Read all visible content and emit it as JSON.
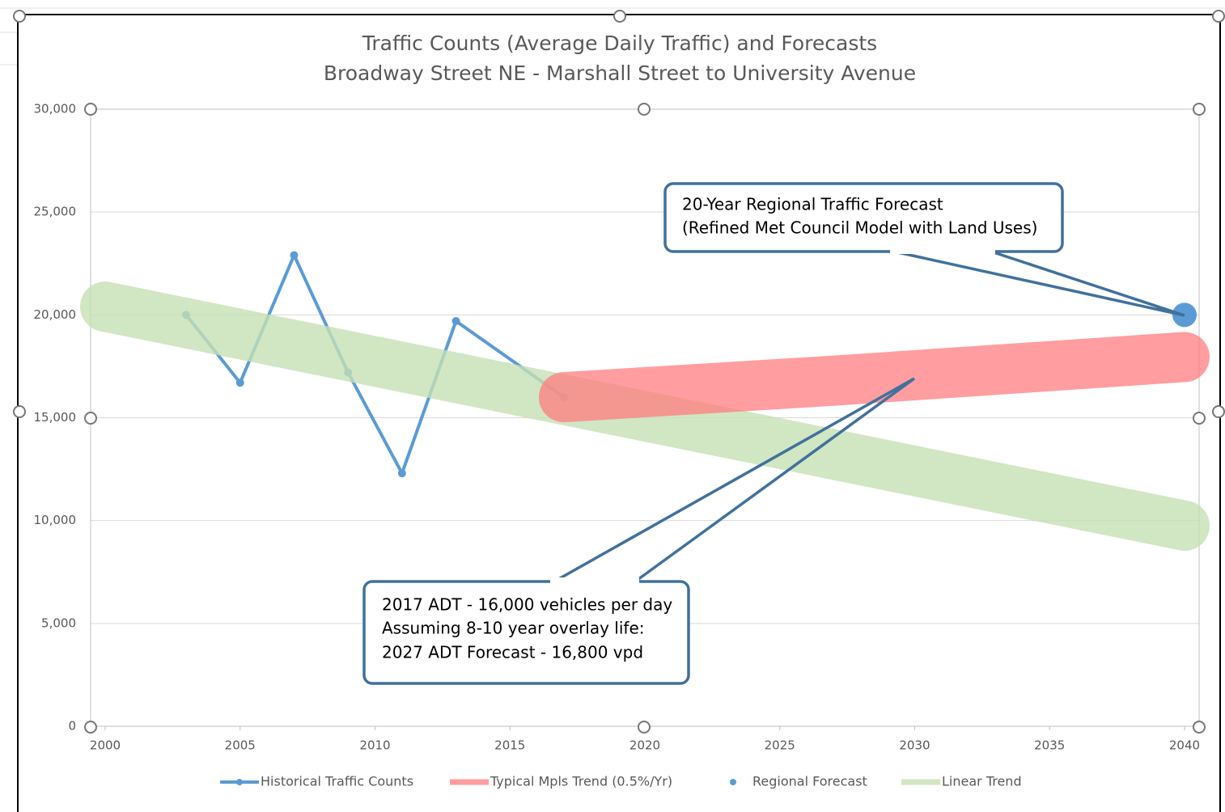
{
  "chart_data": {
    "type": "line",
    "title": [
      "Traffic Counts (Average Daily Traffic) and Forecasts",
      "Broadway Street NE - Marshall Street to University Avenue"
    ],
    "xlim": [
      1999.46,
      2040.54
    ],
    "xticks": [
      2000,
      2005,
      2010,
      2015,
      2020,
      2025,
      2030,
      2035,
      2040
    ],
    "ylim": [
      0,
      30000
    ],
    "yticks": [
      {
        "value": 0,
        "label": "0"
      },
      {
        "value": 5000,
        "label": "5,000"
      },
      {
        "value": 10000,
        "label": "10,000"
      },
      {
        "value": 15000,
        "label": "15,000"
      },
      {
        "value": 20000,
        "label": "20,000"
      },
      {
        "value": 25000,
        "label": "25,000"
      },
      {
        "value": 30000,
        "label": "30,000"
      }
    ],
    "grid": true,
    "legend": "bottom",
    "series": [
      {
        "name": "Historical Traffic Counts",
        "color": "#5b9bd5",
        "x": [
          2003,
          2005,
          2007,
          2009,
          2011,
          2013,
          2017
        ],
        "values": [
          20000,
          16700,
          22900,
          17200,
          12300,
          19700,
          16000
        ]
      },
      {
        "name": "Typical Mpls Trend (0.5%/Yr)",
        "color": "#ff7c80",
        "x": [
          2017,
          2027,
          2040
        ],
        "values": [
          16000,
          16800,
          17950
        ]
      },
      {
        "name": "Regional Forecast",
        "color": "#5b9bd5",
        "x": [
          2040
        ],
        "values": [
          20000
        ]
      },
      {
        "name": "Linear Trend",
        "color": "#c5e0b4",
        "x": [
          2000,
          2040
        ],
        "values": [
          20400,
          9750
        ]
      }
    ],
    "annotations": [
      [
        "20-Year Regional Traffic Forecast",
        "(Refined Met Council Model with Land Uses)"
      ],
      [
        "2017 ADT - 16,000 vehicles per day",
        "Assuming 8-10 year overlay life:",
        "2027 ADT Forecast - 16,800 vpd"
      ]
    ]
  }
}
